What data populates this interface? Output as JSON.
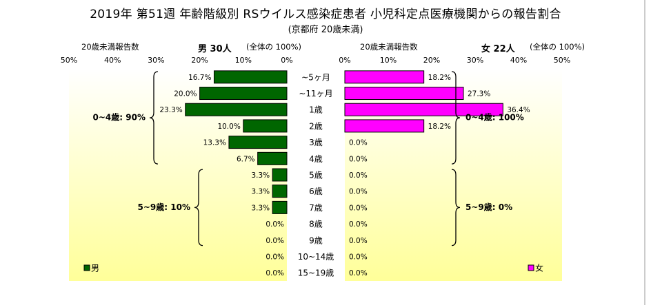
{
  "title": "2019年 第51週 年齢階級別 RSウイルス感染症患者 小児科定点医療機関からの報告割合",
  "subtitle": "(京都府 20歳未満)",
  "colors": {
    "male": "#006600",
    "female": "#ff00ff",
    "plot_bg_top": "#ffffff",
    "plot_bg_bottom": "#ffff99"
  },
  "chart_data": [
    {
      "type": "bar",
      "orientation": "horizontal",
      "direction": "reversed",
      "title": "男 30人",
      "axis_caption": "20歳未満報告数",
      "total_note": "(全体の 100%)",
      "legend": "男",
      "xlim": [
        0,
        50
      ],
      "ticks": [
        "50%",
        "40%",
        "30%",
        "20%",
        "10%",
        "0%"
      ],
      "categories": [
        "~5ヶ月",
        "~11ヶ月",
        "1歳",
        "2歳",
        "3歳",
        "4歳",
        "5歳",
        "6歳",
        "7歳",
        "8歳",
        "9歳",
        "10~14歳",
        "15~19歳"
      ],
      "values": [
        16.7,
        20.0,
        23.3,
        10.0,
        13.3,
        6.7,
        3.3,
        3.3,
        3.3,
        0.0,
        0.0,
        0.0,
        0.0
      ],
      "labels": [
        "16.7%",
        "20.0%",
        "23.3%",
        "10.0%",
        "13.3%",
        "6.7%",
        "3.3%",
        "3.3%",
        "3.3%",
        "0.0%",
        "0.0%",
        "0.0%",
        "0.0%"
      ],
      "groups": [
        {
          "label": "0~4歳: 90%",
          "from": 0,
          "to": 5
        },
        {
          "label": "5~9歳: 10%",
          "from": 6,
          "to": 10
        }
      ]
    },
    {
      "type": "bar",
      "orientation": "horizontal",
      "title": "女 22人",
      "axis_caption": "20歳未満報告数",
      "total_note": "(全体の 100%)",
      "legend": "女",
      "xlim": [
        0,
        50
      ],
      "ticks": [
        "0%",
        "10%",
        "20%",
        "30%",
        "40%",
        "50%"
      ],
      "categories": [
        "~5ヶ月",
        "~11ヶ月",
        "1歳",
        "2歳",
        "3歳",
        "4歳",
        "5歳",
        "6歳",
        "7歳",
        "8歳",
        "9歳",
        "10~14歳",
        "15~19歳"
      ],
      "values": [
        18.2,
        27.3,
        36.4,
        18.2,
        0.0,
        0.0,
        0.0,
        0.0,
        0.0,
        0.0,
        0.0,
        0.0,
        0.0
      ],
      "labels": [
        "18.2%",
        "27.3%",
        "36.4%",
        "18.2%",
        "0.0%",
        "0.0%",
        "0.0%",
        "0.0%",
        "0.0%",
        "0.0%",
        "0.0%",
        "0.0%",
        "0.0%"
      ],
      "groups": [
        {
          "label": "0~4歳: 100%",
          "from": 0,
          "to": 5
        },
        {
          "label": "5~9歳: 0%",
          "from": 6,
          "to": 10
        }
      ]
    }
  ]
}
